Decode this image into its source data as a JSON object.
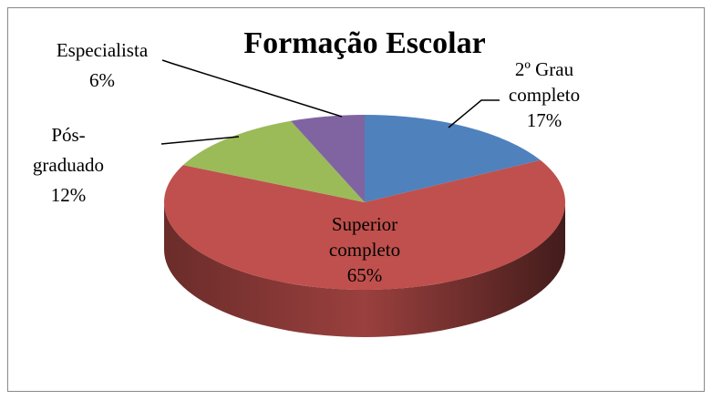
{
  "chart_data": {
    "type": "pie3d",
    "title": "Formação Escolar",
    "categories": [
      "2º Grau completo",
      "Superior completo",
      "Pós-graduado",
      "Especialista"
    ],
    "values": [
      17,
      65,
      12,
      6
    ],
    "value_labels": [
      "17%",
      "65%",
      "12%",
      "6%"
    ],
    "colors": [
      "#4f81bd",
      "#c0504d",
      "#9bbb59",
      "#8064a2"
    ]
  }
}
